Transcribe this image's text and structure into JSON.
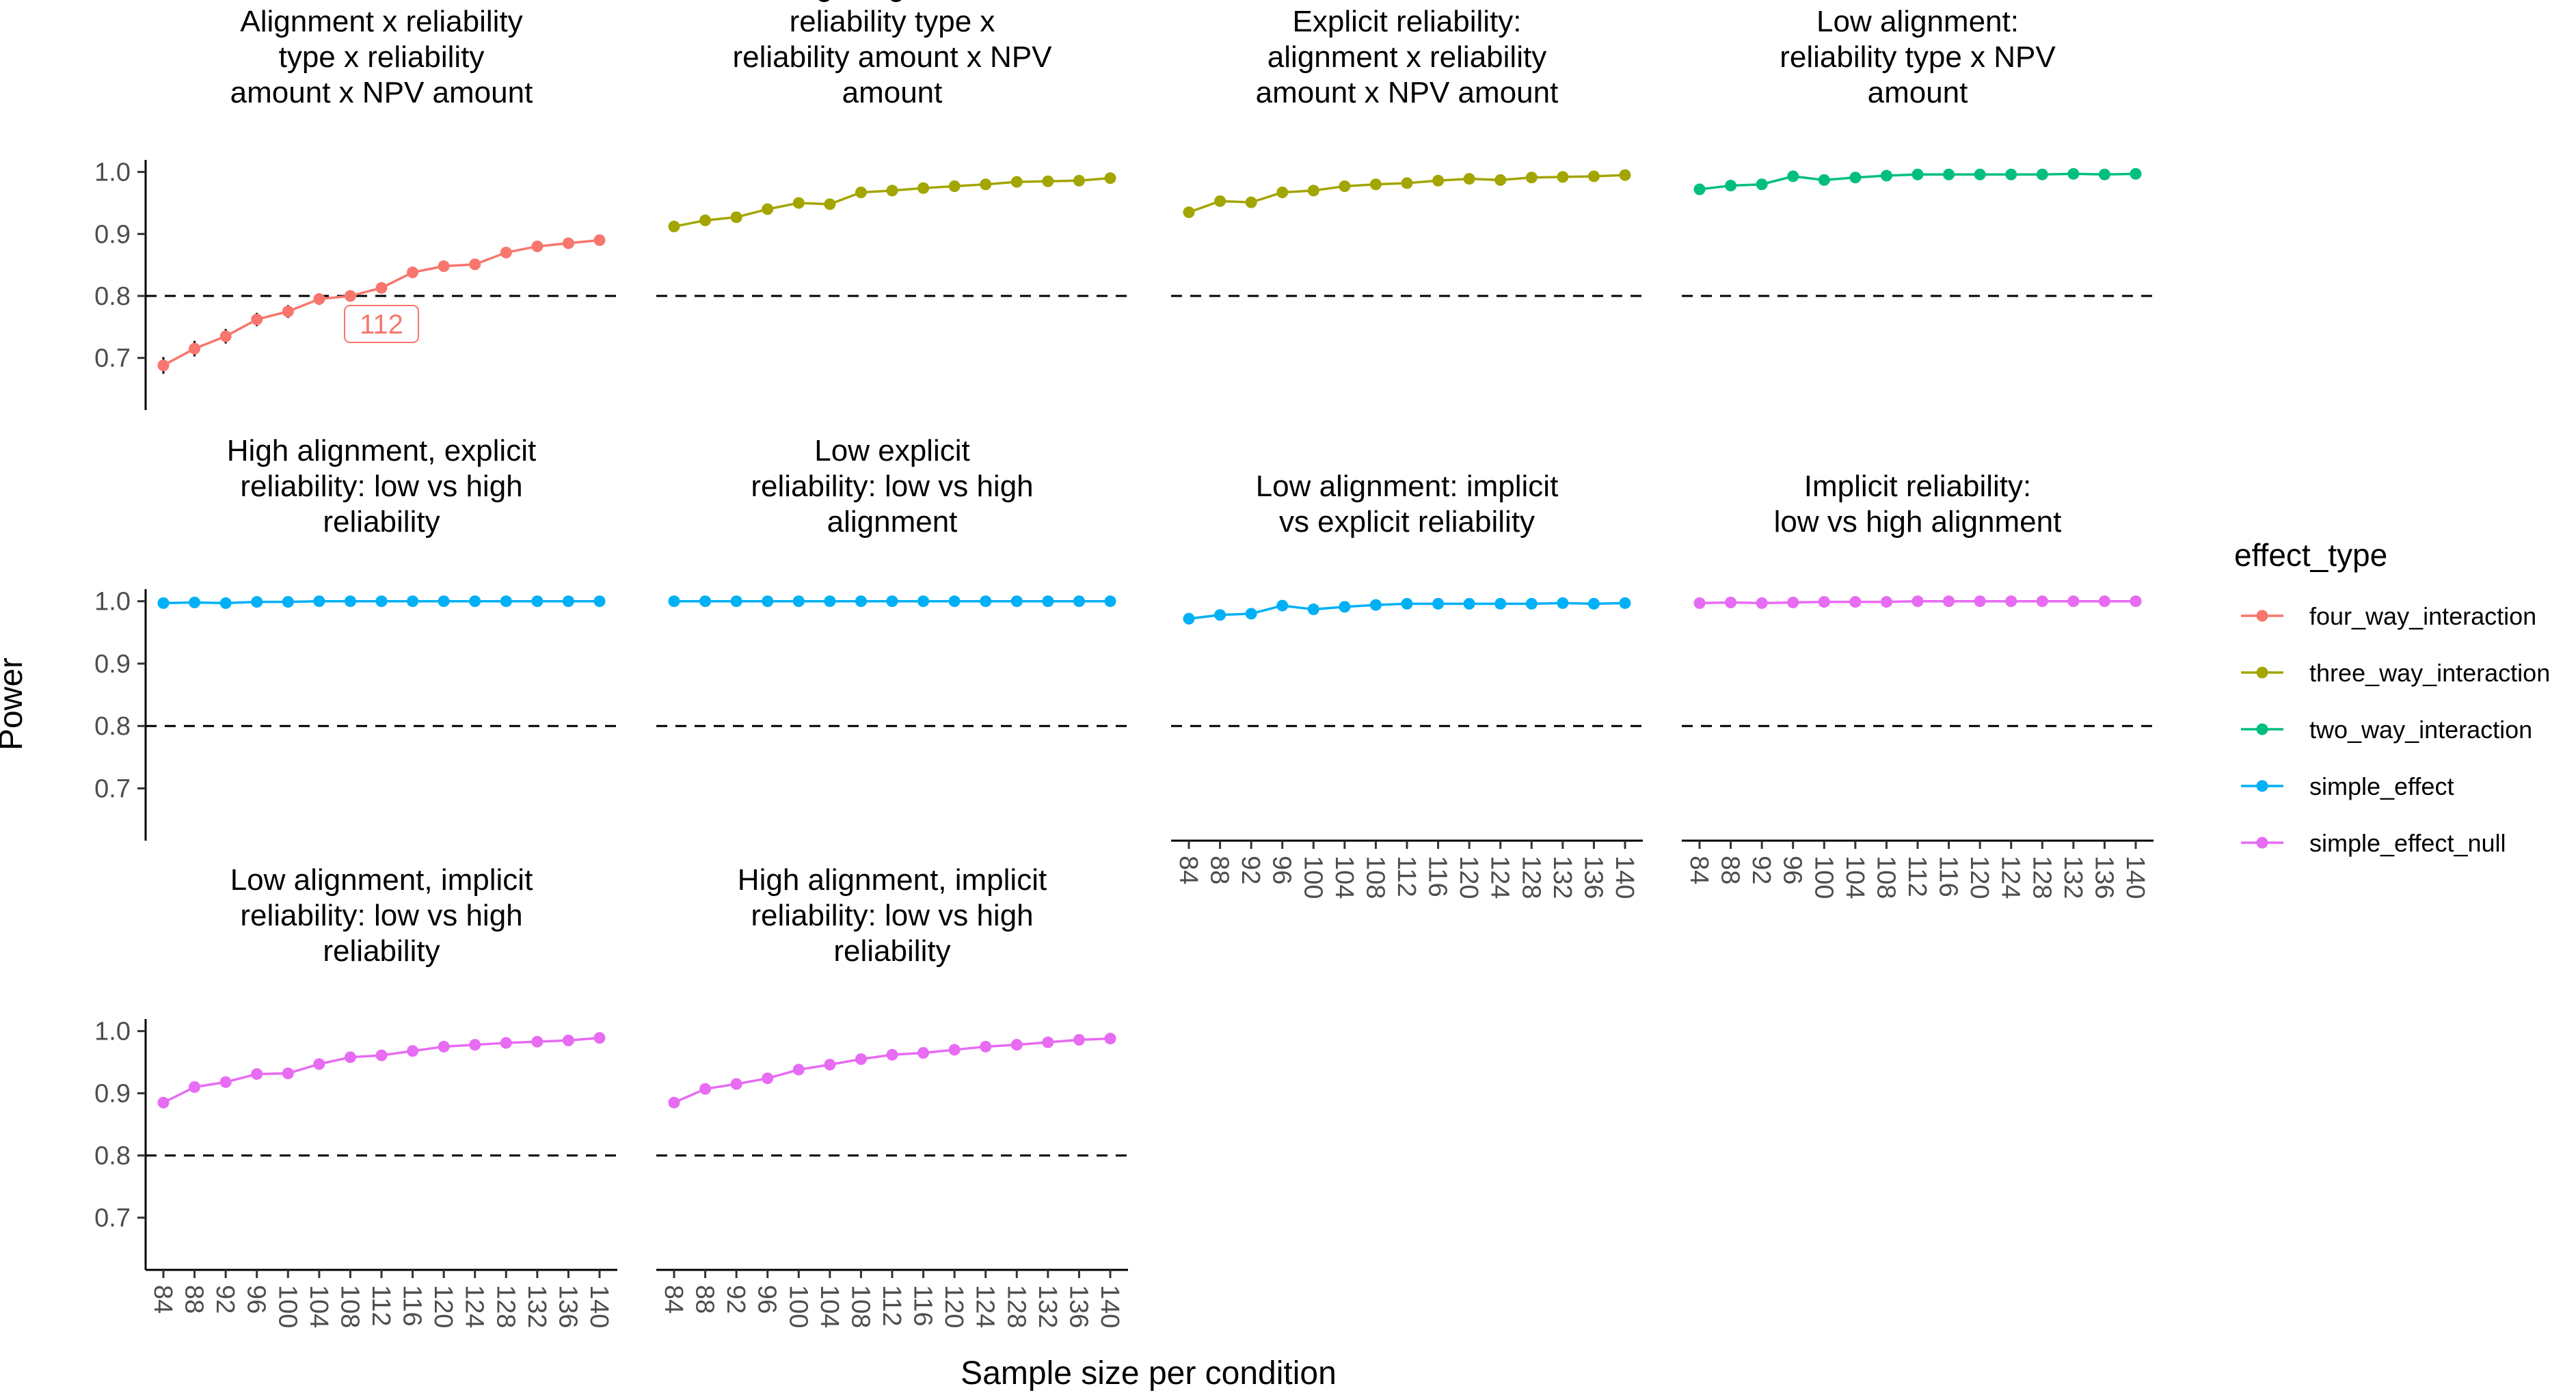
{
  "chart_data": {
    "type": "line",
    "facet_layout": {
      "rows": 3,
      "cols": 4
    },
    "xlabel": "Sample size per condition",
    "ylabel": "Power",
    "x": [
      84,
      88,
      92,
      96,
      100,
      104,
      108,
      112,
      116,
      120,
      124,
      128,
      132,
      136,
      140
    ],
    "x_tick_labels": [
      "84",
      "88",
      "92",
      "96",
      "100",
      "104",
      "108",
      "112",
      "116",
      "120",
      "124",
      "128",
      "132",
      "136",
      "140"
    ],
    "ylim": [
      0.66,
      1.015
    ],
    "y_ticks": [
      0.7,
      0.8,
      0.9,
      1.0
    ],
    "y_tick_labels": [
      "0.7",
      "0.8",
      "0.9",
      "1.0"
    ],
    "reference_line": {
      "y": 0.8,
      "style": "dashed"
    },
    "grid": false,
    "legend": {
      "title": "effect_type",
      "position": "right",
      "entries": [
        {
          "name": "four_way_interaction",
          "color": "#F8766D"
        },
        {
          "name": "three_way_interaction",
          "color": "#A3A500"
        },
        {
          "name": "two_way_interaction",
          "color": "#00BF7D"
        },
        {
          "name": "simple_effect",
          "color": "#00B0F6"
        },
        {
          "name": "simple_effect_null",
          "color": "#E76BF3"
        }
      ]
    },
    "panels": [
      {
        "title": [
          "Alignment x reliability",
          "type x reliability",
          "amount x NPV amount"
        ],
        "effect_type": "four_way_interaction",
        "values": [
          0.688,
          0.715,
          0.735,
          0.762,
          0.775,
          0.795,
          0.8,
          0.813,
          0.838,
          0.848,
          0.851,
          0.87,
          0.88,
          0.885,
          0.89
        ],
        "annotation": {
          "label": "112",
          "x": 112
        }
      },
      {
        "title": [
          "High alignment:",
          "reliability type x",
          "reliability amount x NPV",
          "amount"
        ],
        "effect_type": "three_way_interaction",
        "values": [
          0.912,
          0.922,
          0.927,
          0.94,
          0.95,
          0.948,
          0.967,
          0.97,
          0.974,
          0.977,
          0.98,
          0.984,
          0.985,
          0.986,
          0.99
        ]
      },
      {
        "title": [
          "Explicit reliability:",
          "alignment x reliability",
          "amount x NPV amount"
        ],
        "effect_type": "three_way_interaction",
        "values": [
          0.935,
          0.953,
          0.951,
          0.967,
          0.97,
          0.977,
          0.98,
          0.982,
          0.986,
          0.989,
          0.987,
          0.991,
          0.992,
          0.993,
          0.995
        ]
      },
      {
        "title": [
          "Low alignment:",
          "reliability type x NPV",
          "amount"
        ],
        "effect_type": "two_way_interaction",
        "values": [
          0.972,
          0.978,
          0.98,
          0.993,
          0.987,
          0.991,
          0.994,
          0.996,
          0.996,
          0.996,
          0.996,
          0.996,
          0.997,
          0.996,
          0.997
        ]
      },
      {
        "title": [
          "High alignment, explicit",
          "reliability: low vs high",
          "reliability"
        ],
        "effect_type": "simple_effect",
        "values": [
          0.997,
          0.998,
          0.997,
          0.999,
          0.999,
          1.0,
          1.0,
          1.0,
          1.0,
          1.0,
          1.0,
          1.0,
          1.0,
          1.0,
          1.0
        ]
      },
      {
        "title": [
          "Low explicit",
          "reliability: low vs high",
          "alignment"
        ],
        "effect_type": "simple_effect",
        "values": [
          1.0,
          1.0,
          1.0,
          1.0,
          1.0,
          1.0,
          1.0,
          1.0,
          1.0,
          1.0,
          1.0,
          1.0,
          1.0,
          1.0,
          1.0
        ]
      },
      {
        "title": [
          "Low alignment: implicit",
          "vs explicit reliability"
        ],
        "effect_type": "simple_effect",
        "values": [
          0.972,
          0.978,
          0.98,
          0.993,
          0.987,
          0.991,
          0.994,
          0.996,
          0.996,
          0.996,
          0.996,
          0.996,
          0.997,
          0.996,
          0.997
        ]
      },
      {
        "title": [
          "Implicit reliability:",
          "low vs high alignment"
        ],
        "effect_type": "simple_effect_null",
        "values": [
          0.997,
          0.998,
          0.997,
          0.998,
          0.999,
          0.999,
          0.999,
          1.0,
          1.0,
          1.0,
          1.0,
          1.0,
          1.0,
          1.0,
          1.0
        ]
      },
      {
        "title": [
          "Low alignment, implicit",
          "reliability: low vs high",
          "reliability"
        ],
        "effect_type": "simple_effect_null",
        "values": [
          0.885,
          0.91,
          0.918,
          0.931,
          0.932,
          0.947,
          0.958,
          0.961,
          0.968,
          0.975,
          0.978,
          0.981,
          0.983,
          0.985,
          0.989
        ]
      },
      {
        "title": [
          "High alignment, implicit",
          "reliability: low vs high",
          "reliability"
        ],
        "effect_type": "simple_effect_null",
        "values": [
          0.885,
          0.907,
          0.915,
          0.924,
          0.938,
          0.946,
          0.955,
          0.962,
          0.965,
          0.97,
          0.975,
          0.978,
          0.982,
          0.986,
          0.988
        ]
      }
    ]
  }
}
